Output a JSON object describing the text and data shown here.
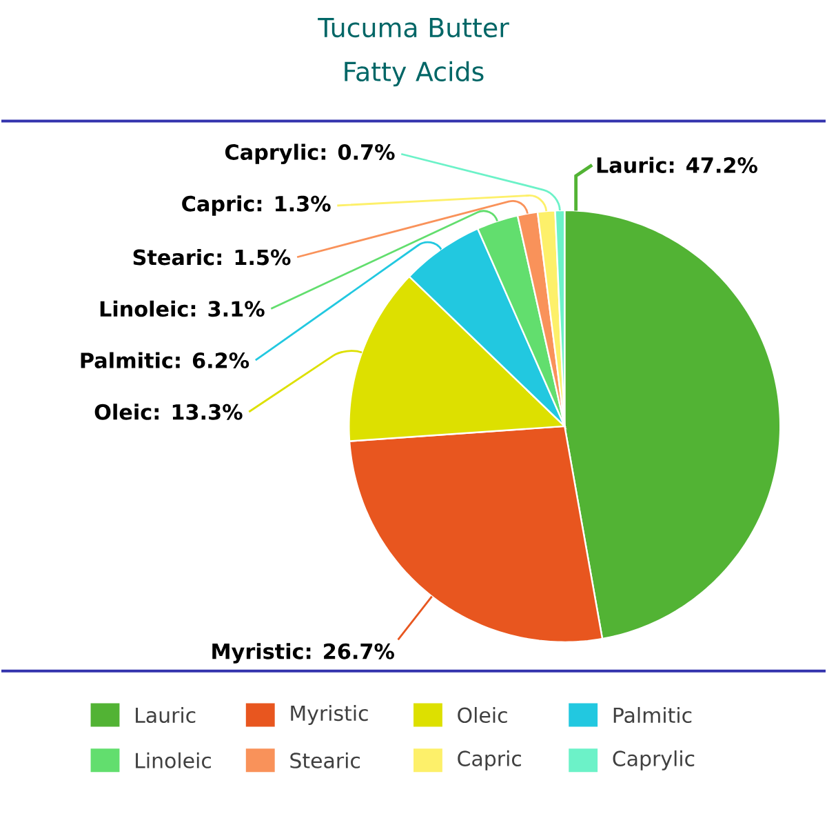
{
  "chart_data": {
    "type": "pie",
    "title": "Tucuma Butter Fatty Acids",
    "categories": [
      "Lauric",
      "Myristic",
      "Oleic",
      "Palmitic",
      "Linoleic",
      "Stearic",
      "Capric",
      "Caprylic"
    ],
    "values": [
      47.2,
      26.7,
      13.3,
      6.2,
      3.1,
      1.5,
      1.3,
      0.7
    ],
    "colors": [
      "#52b334",
      "#e8561f",
      "#dde000",
      "#22c8e0",
      "#62de6e",
      "#f9925a",
      "#fdf06a",
      "#6cf2c8"
    ],
    "value_labels": [
      "Lauric: 47.2%",
      "Myristic: 26.7%",
      "Oleic: 13.3%",
      "Palmitic: 6.2%",
      "Linoleic: 3.1%",
      "Stearic: 1.5%",
      "Capric: 1.3%",
      "Caprylic: 0.7%"
    ],
    "legend": "bottom"
  }
}
